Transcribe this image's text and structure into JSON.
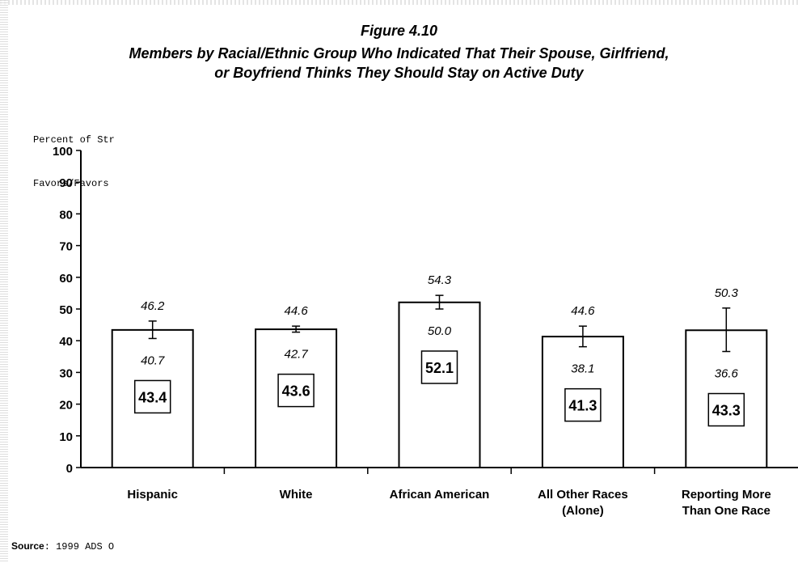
{
  "figure": {
    "title": "Figure 4.10",
    "subtitle_lines": [
      "Members by Racial/Ethnic Group Who Indicated That Their Spouse, Girlfriend,",
      "or Boyfriend Thinks They Should Stay on Active Duty"
    ],
    "ylabel_lines": [
      "Percent of Str",
      "Favors/Favors"
    ]
  },
  "source": {
    "label": "Source",
    "text": ": 1999 ADS O"
  },
  "chart_data": {
    "type": "bar",
    "title": "Figure 4.10",
    "subtitle": "Members by Racial/Ethnic Group Who Indicated That Their Spouse, Girlfriend, or Boyfriend Thinks They Should Stay on Active Duty",
    "ylabel": "Percent of Str Favors/Favors",
    "xlabel": "",
    "ylim": [
      0,
      100
    ],
    "yticks": [
      0,
      10,
      20,
      30,
      40,
      50,
      60,
      70,
      80,
      90,
      100
    ],
    "grid": false,
    "categories": [
      "Hispanic",
      "White",
      "African American",
      "All Other Races (Alone)",
      "Reporting More Than One Race"
    ],
    "category_label_lines": [
      [
        "Hispanic"
      ],
      [
        "White"
      ],
      [
        "African American"
      ],
      [
        "All Other Races",
        "(Alone)"
      ],
      [
        "Reporting More",
        "Than One Race"
      ]
    ],
    "values": [
      43.4,
      43.6,
      52.1,
      41.3,
      43.3
    ],
    "upper": [
      46.2,
      44.6,
      54.3,
      44.6,
      50.3
    ],
    "lower": [
      40.7,
      42.7,
      50.0,
      38.1,
      36.6
    ],
    "colors": {
      "bar_fill": "#ffffff",
      "stroke": "#000000"
    }
  }
}
